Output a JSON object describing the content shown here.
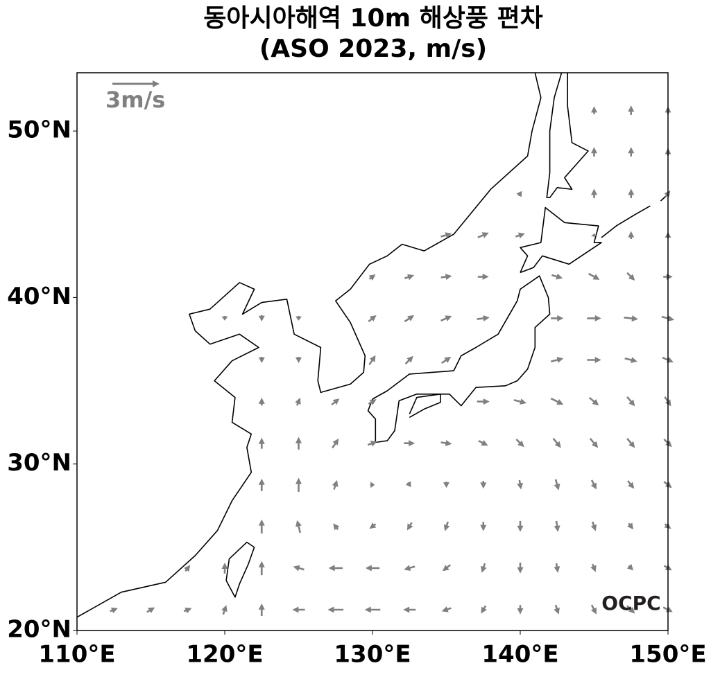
{
  "map": {
    "type": "quiver",
    "title": "동아시아해역 10m 해상풍 편차",
    "subtitle": "(ASO 2023, m/s)",
    "xlim": [
      110,
      150
    ],
    "ylim": [
      20,
      53.5
    ],
    "xticks": [
      {
        "value": 110,
        "label": "110°E"
      },
      {
        "value": 120,
        "label": "120°E"
      },
      {
        "value": 130,
        "label": "130°E"
      },
      {
        "value": 140,
        "label": "140°E"
      },
      {
        "value": 150,
        "label": "150°E"
      }
    ],
    "yticks": [
      {
        "value": 20,
        "label": "20°N"
      },
      {
        "value": 30,
        "label": "30°N"
      },
      {
        "value": 40,
        "label": "40°N"
      },
      {
        "value": 50,
        "label": "50°N"
      }
    ],
    "reference_arrow": {
      "value": 3,
      "label": "3m/s"
    },
    "logo": "OCPC",
    "color": "#808080",
    "lons": [
      112.5,
      115,
      117.5,
      120,
      122.5,
      125,
      127.5,
      130,
      132.5,
      135,
      137.5,
      140,
      142.5,
      145,
      147.5,
      150
    ],
    "lats": [
      21.25,
      23.75,
      26.25,
      28.75,
      31.25,
      33.75,
      36.25,
      38.75,
      41.25,
      43.75,
      46.25,
      48.75,
      51.25
    ],
    "u": [
      [
        0.5,
        0.5,
        0.5,
        0.2,
        0,
        -0.8,
        -1,
        -1,
        -0.8,
        -0.6,
        -0.3,
        0,
        0.2,
        0.3,
        0.5,
        0.6
      ],
      [
        null,
        null,
        0.3,
        0,
        0,
        -0.7,
        -0.9,
        -0.9,
        -0.7,
        -0.5,
        -0.2,
        0,
        0.1,
        0.2,
        0.3,
        0.5
      ],
      [
        null,
        null,
        null,
        null,
        0,
        -0.2,
        -0.3,
        -0.4,
        -0.3,
        -0.2,
        0,
        0,
        0.1,
        0.2,
        0.3,
        0.4
      ],
      [
        null,
        null,
        null,
        null,
        0,
        0,
        0.2,
        0.3,
        0.2,
        0,
        0,
        0.1,
        0.2,
        0.3,
        0.4,
        0.5
      ],
      [
        null,
        null,
        null,
        null,
        0,
        0,
        0.4,
        0.6,
        0.7,
        0.7,
        0.6,
        0.5,
        0.5,
        0.5,
        0.5,
        0.5
      ],
      [
        null,
        null,
        null,
        null,
        0,
        0.2,
        0.5,
        0.5,
        null,
        null,
        0.8,
        0.8,
        0.8,
        0.6,
        0.5,
        0.4
      ],
      [
        null,
        null,
        null,
        null,
        0,
        0,
        null,
        0.4,
        0.5,
        0.6,
        null,
        null,
        0.8,
        0.9,
        0.8,
        0.7
      ],
      [
        null,
        null,
        null,
        0,
        0,
        0,
        null,
        0.5,
        0.6,
        0.7,
        0.8,
        null,
        0.8,
        0.9,
        0.9,
        0.8
      ],
      [
        null,
        null,
        null,
        null,
        null,
        null,
        null,
        0.4,
        0.6,
        0.7,
        0.7,
        null,
        0.7,
        0.7,
        0.5,
        0.6
      ],
      [
        null,
        null,
        null,
        null,
        null,
        null,
        null,
        null,
        null,
        0.7,
        0.7,
        0.6,
        null,
        0,
        0,
        0
      ],
      [
        null,
        null,
        null,
        null,
        null,
        null,
        null,
        null,
        null,
        null,
        null,
        0.2,
        null,
        0,
        0,
        0.3
      ],
      [
        null,
        null,
        null,
        null,
        null,
        null,
        null,
        null,
        null,
        null,
        null,
        null,
        null,
        0,
        0,
        0
      ],
      [
        null,
        null,
        null,
        null,
        null,
        null,
        null,
        null,
        null,
        null,
        null,
        null,
        null,
        0,
        0,
        0
      ]
    ],
    "v": [
      [
        0.2,
        0.3,
        0.2,
        0.6,
        0.8,
        0,
        0,
        0,
        0,
        -0.2,
        -0.5,
        -0.6,
        -0.6,
        -0.6,
        -0.5,
        -0.3
      ],
      [
        null,
        null,
        0.4,
        0.7,
        0.9,
        0.2,
        0,
        0,
        -0.2,
        -0.4,
        -0.6,
        -0.7,
        -0.6,
        -0.5,
        -0.3,
        -0.3
      ],
      [
        null,
        null,
        null,
        null,
        0.9,
        0.8,
        0.4,
        -0.3,
        -0.5,
        -0.6,
        -0.6,
        -0.7,
        -0.7,
        -0.6,
        -0.4,
        -0.3
      ],
      [
        null,
        null,
        null,
        null,
        0.8,
        0.9,
        0.6,
        0,
        -0.3,
        -0.4,
        -0.5,
        -0.6,
        -0.7,
        -0.6,
        -0.5,
        -0.4
      ],
      [
        null,
        null,
        null,
        null,
        0.7,
        0.8,
        0.6,
        0.2,
        0,
        -0.1,
        -0.3,
        -0.5,
        -0.6,
        -0.6,
        -0.6,
        -0.5
      ],
      [
        null,
        null,
        null,
        null,
        0.5,
        0.5,
        0.4,
        0.3,
        null,
        null,
        0,
        -0.2,
        -0.4,
        -0.5,
        -0.6,
        -0.6
      ],
      [
        null,
        null,
        null,
        null,
        -0.4,
        -0.4,
        null,
        0.6,
        0.5,
        0.4,
        null,
        null,
        0.2,
        0,
        -0.2,
        -0.3
      ],
      [
        null,
        null,
        null,
        -0.3,
        -0.4,
        -0.3,
        null,
        0.4,
        0.4,
        0.3,
        0.1,
        null,
        0,
        0,
        -0.1,
        -0.2
      ],
      [
        null,
        null,
        null,
        null,
        null,
        null,
        null,
        0.3,
        0.2,
        0.1,
        0,
        null,
        -0.2,
        -0.4,
        -0.5,
        0
      ],
      [
        null,
        null,
        null,
        null,
        null,
        null,
        null,
        null,
        null,
        0.2,
        0.3,
        0.2,
        null,
        0.2,
        0.5,
        0.4
      ],
      [
        null,
        null,
        null,
        null,
        null,
        null,
        null,
        null,
        null,
        null,
        null,
        0.3,
        null,
        0.6,
        0.6,
        0.4
      ],
      [
        null,
        null,
        null,
        null,
        null,
        null,
        null,
        null,
        null,
        null,
        null,
        null,
        null,
        0.6,
        0.6,
        0.5
      ],
      [
        null,
        null,
        null,
        null,
        null,
        null,
        null,
        null,
        null,
        null,
        null,
        null,
        null,
        0.5,
        0.6,
        0.5
      ]
    ]
  }
}
